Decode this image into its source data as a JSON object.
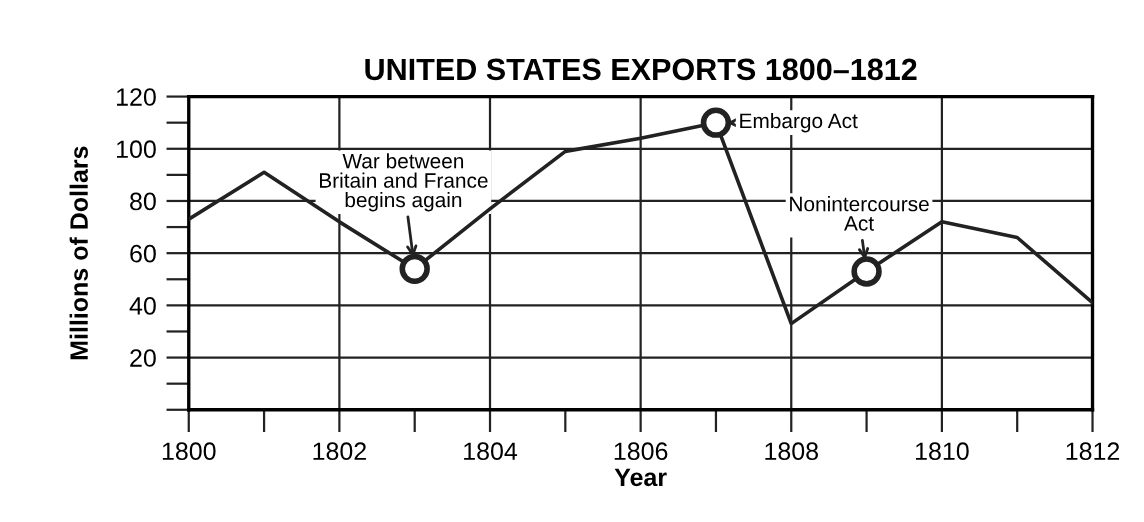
{
  "chart_data": {
    "type": "line",
    "title": "UNITED STATES EXPORTS 1800–1812",
    "xlabel": "Year",
    "ylabel": "Millions of Dollars",
    "x": [
      1800,
      1801,
      1802,
      1803,
      1804,
      1805,
      1806,
      1807,
      1808,
      1809,
      1810,
      1811,
      1812
    ],
    "series": [
      {
        "color": "#222222",
        "marker": "none",
        "values": [
          73,
          91,
          72,
          54,
          77,
          99,
          104,
          110,
          33,
          53,
          72,
          66,
          41
        ]
      },
      {
        "type": "scatter",
        "color": "#222222",
        "marker": "circle",
        "x": [
          1803,
          1807,
          1809
        ],
        "values": [
          54,
          110,
          53
        ]
      }
    ],
    "annotations": [
      {
        "text": "War between\nBritain and France\nbegins again",
        "x": 1803,
        "y": 54
      },
      {
        "text": "Embargo Act",
        "x": 1807,
        "y": 110
      },
      {
        "text": "Nonintercourse\nAct",
        "x": 1809,
        "y": 53
      }
    ],
    "xlim": [
      1800,
      1812
    ],
    "ylim": [
      0,
      120
    ],
    "xticks": [
      1800,
      {
        "value": 1801,
        "label": null
      },
      1802,
      {
        "value": 1803,
        "label": null
      },
      1804,
      {
        "value": 1805,
        "label": null
      },
      1806,
      {
        "value": 1807,
        "label": null
      },
      1808,
      {
        "value": 1809,
        "label": null
      },
      1810,
      {
        "value": 1811,
        "label": null
      },
      1812
    ],
    "yticks": [
      {
        "value": 0,
        "label": null
      },
      {
        "value": 10,
        "label": null
      },
      20,
      {
        "value": 30,
        "label": null
      },
      40,
      {
        "value": 50,
        "label": null
      },
      60,
      {
        "value": 70,
        "label": null
      },
      80,
      {
        "value": 90,
        "label": null
      },
      100,
      {
        "value": 110,
        "label": null
      },
      120
    ],
    "grid": true,
    "legend": false
  }
}
